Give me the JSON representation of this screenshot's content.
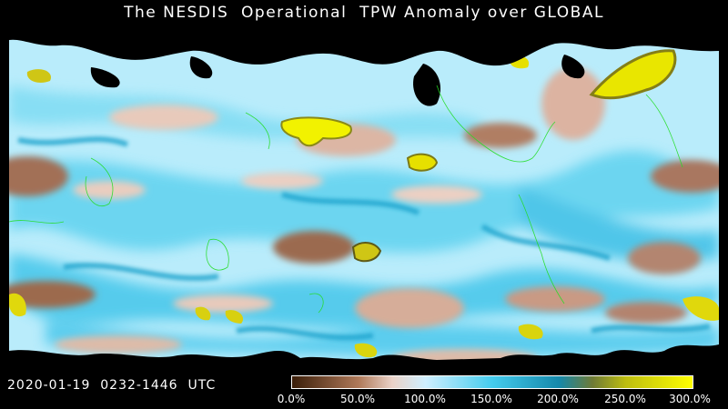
{
  "title": "The NESDIS  Operational  TPW Anomaly over GLOBAL",
  "timestamp": "2020-01-19  0232-1446  UTC",
  "map": {
    "variable": "TPW Anomaly",
    "region": "GLOBAL",
    "coastline_color": "#22dd22",
    "no_data_color": "#000000"
  },
  "colorbar": {
    "stops": [
      {
        "value": 0,
        "color": "#3a1d08"
      },
      {
        "value": 50,
        "color": "#b07a5a"
      },
      {
        "value": 75,
        "color": "#ead2c8"
      },
      {
        "value": 100,
        "color": "#cfefff"
      },
      {
        "value": 150,
        "color": "#44ccee"
      },
      {
        "value": 200,
        "color": "#1588aa"
      },
      {
        "value": 225,
        "color": "#6e7a36"
      },
      {
        "value": 250,
        "color": "#bdbd10"
      },
      {
        "value": 300,
        "color": "#ffff00"
      }
    ],
    "min": 0,
    "max": 300,
    "ticks": [
      "0.0%",
      "50.0%",
      "100.0%",
      "150.0%",
      "200.0%",
      "250.0%",
      "300.0%"
    ]
  }
}
